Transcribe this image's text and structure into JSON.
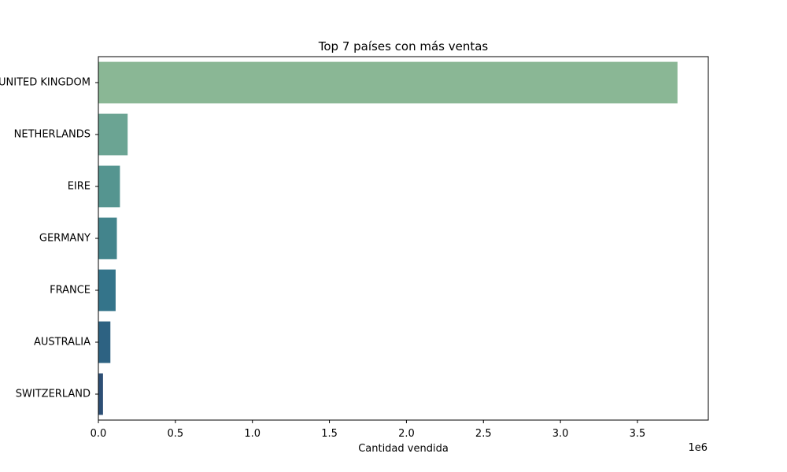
{
  "chart_data": {
    "type": "bar",
    "orientation": "horizontal",
    "title": "Top 7 países con más ventas",
    "xlabel": "Cantidad vendida",
    "ylabel": "",
    "x_offset_text": "1e6",
    "xlim": [
      0,
      3960000
    ],
    "x_ticks": [
      0,
      500000,
      1000000,
      1500000,
      2000000,
      2500000,
      3000000,
      3500000
    ],
    "x_tick_labels": [
      "0.0",
      "0.5",
      "1.0",
      "1.5",
      "2.0",
      "2.5",
      "3.0",
      "3.5"
    ],
    "categories": [
      "UNITED KINGDOM",
      "NETHERLANDS",
      "EIRE",
      "GERMANY",
      "FRANCE",
      "AUSTRALIA",
      "SWITZERLAND"
    ],
    "values": [
      3760000,
      190000,
      140000,
      120000,
      112000,
      78000,
      30000
    ],
    "colors": [
      "#8ab795",
      "#6ba493",
      "#559590",
      "#43848c",
      "#34748a",
      "#2d6282",
      "#2d4f75"
    ],
    "grid": false,
    "legend": "none"
  }
}
